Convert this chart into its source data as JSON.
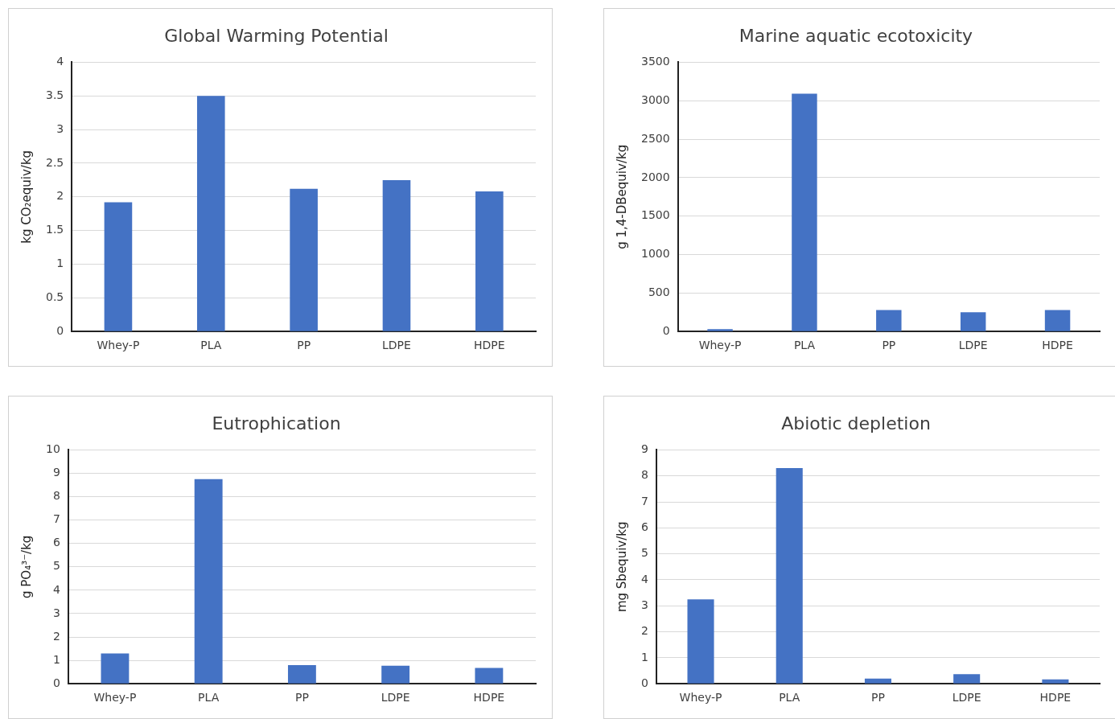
{
  "chart_data": [
    {
      "type": "bar",
      "title": "Global Warming Potential",
      "ylabel": "kg CO₂equiv/kg",
      "categories": [
        "Whey-P",
        "PLA",
        "PP",
        "LDPE",
        "HDPE"
      ],
      "values": [
        1.92,
        3.5,
        2.12,
        2.25,
        2.08
      ],
      "color": "#4472c4",
      "ylim": [
        0,
        4
      ],
      "yticks": [
        0,
        0.5,
        1,
        1.5,
        2,
        2.5,
        3,
        3.5,
        4
      ],
      "grid": "y"
    },
    {
      "type": "bar",
      "title": "Marine aquatic ecotoxicity",
      "ylabel": "g 1,4-DBequiv/kg",
      "categories": [
        "Whey-P",
        "PLA",
        "PP",
        "LDPE",
        "HDPE"
      ],
      "values": [
        30,
        3090,
        280,
        250,
        280
      ],
      "color": "#4472c4",
      "ylim": [
        0,
        3500
      ],
      "yticks": [
        0,
        500,
        1000,
        1500,
        2000,
        2500,
        3000,
        3500
      ],
      "grid": "y"
    },
    {
      "type": "bar",
      "title": "Eutrophication",
      "ylabel": "g PO₄³⁻/kg",
      "categories": [
        "Whey-P",
        "PLA",
        "PP",
        "LDPE",
        "HDPE"
      ],
      "values": [
        1.3,
        8.75,
        0.8,
        0.77,
        0.68
      ],
      "color": "#4472c4",
      "ylim": [
        0,
        10
      ],
      "yticks": [
        0,
        1,
        2,
        3,
        4,
        5,
        6,
        7,
        8,
        9,
        10
      ],
      "grid": "y"
    },
    {
      "type": "bar",
      "title": "Abiotic depletion",
      "ylabel": "mg Sbequiv/kg",
      "categories": [
        "Whey-P",
        "PLA",
        "PP",
        "LDPE",
        "HDPE"
      ],
      "values": [
        3.25,
        8.3,
        0.2,
        0.37,
        0.17
      ],
      "color": "#4472c4",
      "ylim": [
        0,
        9
      ],
      "yticks": [
        0,
        1,
        2,
        3,
        4,
        5,
        6,
        7,
        8,
        9
      ],
      "grid": "y"
    }
  ]
}
